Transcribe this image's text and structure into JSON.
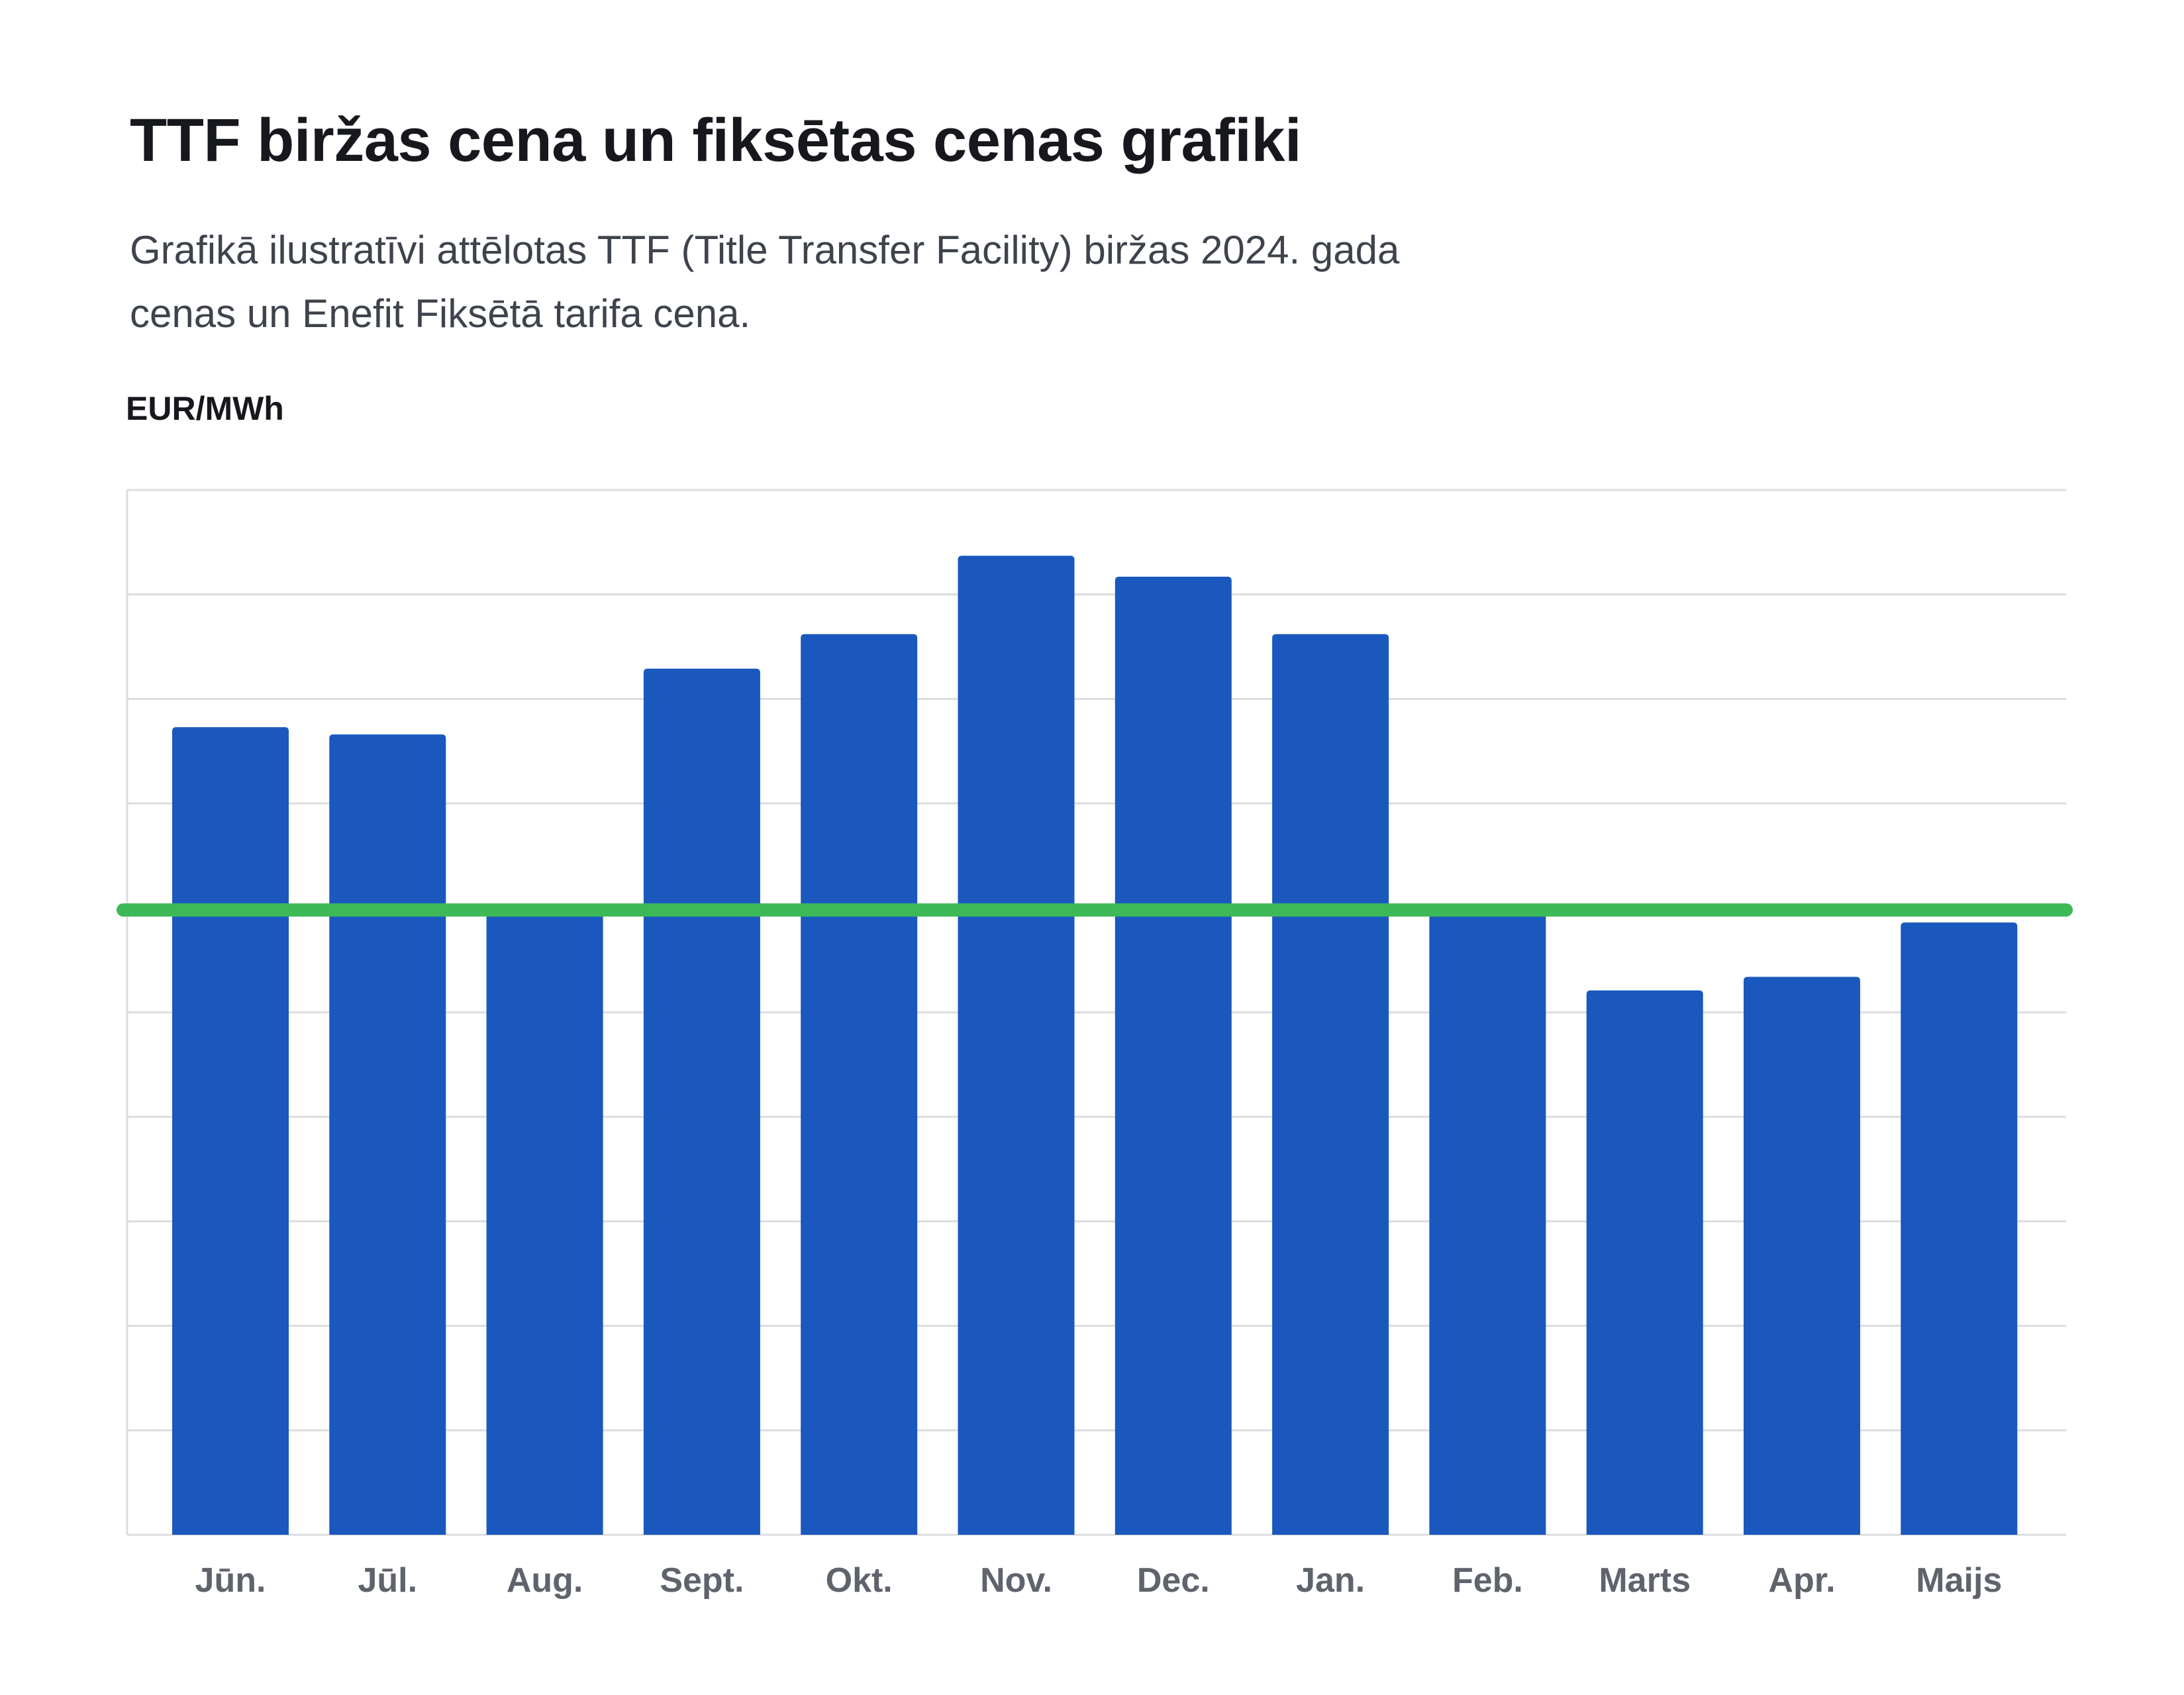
{
  "header": {
    "title": "TTF biržas cena un fiksētas cenas grafiki",
    "subtitle_line1": "Grafikā ilustratīvi attēlotas TTF (Title Transfer Facility) biržas 2024. gada",
    "subtitle_line2": "cenas un Enefit Fiksētā tarifa cena."
  },
  "chart_data": {
    "type": "bar",
    "ylabel": "EUR/MWh",
    "xlabel": "",
    "categories": [
      "Jūn.",
      "Jūl.",
      "Aug.",
      "Sept.",
      "Okt.",
      "Nov.",
      "Dec.",
      "Jan.",
      "Feb.",
      "Marts",
      "Apr.",
      "Maijs"
    ],
    "series": [
      {
        "values": [
          7.73,
          7.66,
          5.99,
          8.29,
          8.62,
          9.37,
          9.17,
          8.62,
          5.99,
          5.21,
          5.34,
          5.86
        ],
        "color": "#1a58be"
      }
    ],
    "reference_line": {
      "value": 5.98,
      "color": "#3dba57"
    },
    "ylim": [
      0,
      10
    ],
    "gridlines": 10,
    "y_tick_labels_shown": false,
    "grid": true,
    "legend": "none"
  }
}
